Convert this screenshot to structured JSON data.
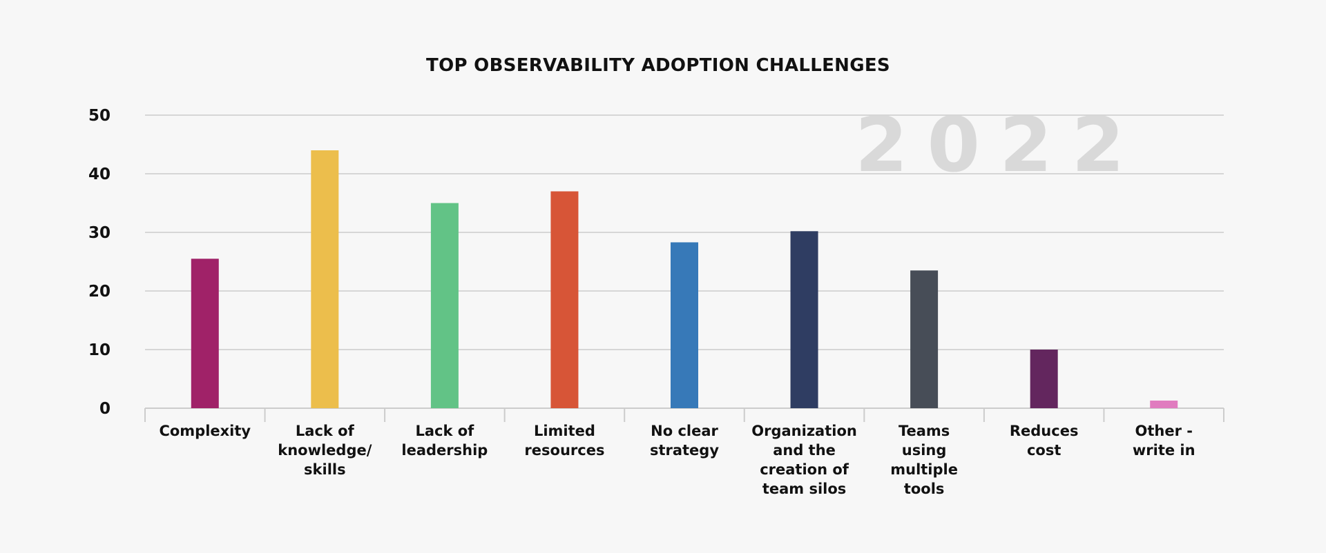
{
  "chart_data": {
    "type": "bar",
    "title": "TOP OBSERVABILITY ADOPTION CHALLENGES",
    "watermark": "2022",
    "xlabel": "",
    "ylabel": "",
    "ylim": [
      0,
      50
    ],
    "yticks": [
      0,
      10,
      20,
      30,
      40,
      50
    ],
    "grid": true,
    "categories": [
      [
        "Complexity"
      ],
      [
        "Lack of",
        "knowledge/",
        "skills"
      ],
      [
        "Lack of",
        "leadership"
      ],
      [
        "Limited",
        "resources"
      ],
      [
        "No clear",
        "strategy"
      ],
      [
        "Organization",
        "and the",
        "creation of",
        "team silos"
      ],
      [
        "Teams",
        "using",
        "multiple",
        "tools"
      ],
      [
        "Reduces",
        "cost"
      ],
      [
        "Other -",
        "write in"
      ]
    ],
    "values": [
      25.5,
      44,
      35,
      37,
      28.3,
      30.2,
      23.5,
      10,
      1.3
    ],
    "colors": [
      "#a02268",
      "#ecbe4c",
      "#62c386",
      "#d75537",
      "#3779b8",
      "#2f3d62",
      "#474d57",
      "#63265e",
      "#e07cbf"
    ]
  }
}
